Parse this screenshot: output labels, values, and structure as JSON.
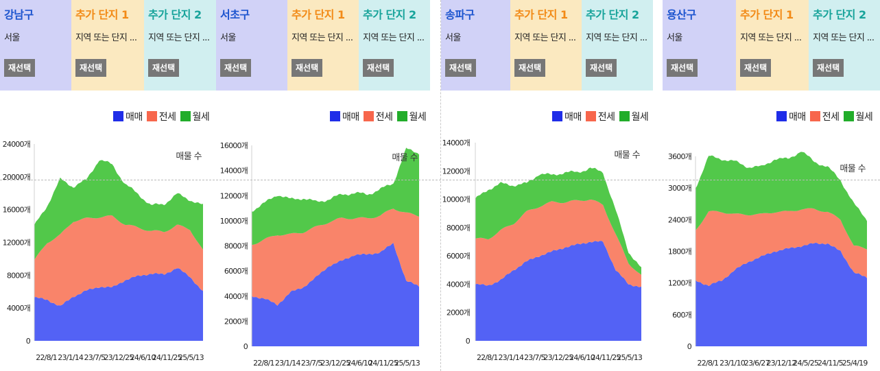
{
  "colors": {
    "sale": "#5362f5",
    "jeonse": "#f9846a",
    "monthly": "#52c84a",
    "sale_legend": "#1f2de8",
    "jeonse_legend": "#f7664c",
    "monthly_legend": "#22ad2a"
  },
  "legend": {
    "sale": "매매",
    "jeonse": "전세",
    "monthly": "월세"
  },
  "reselect_label": "재선택",
  "panels": [
    {
      "region": "강남구",
      "city": "서울",
      "extra1": {
        "title": "추가 단지 1",
        "placeholder": "지역 또는 단지 ..."
      },
      "extra2": {
        "title": "추가 단지 2",
        "placeholder": "지역 또는 단지 ..."
      }
    },
    {
      "region": "서초구",
      "city": "서울",
      "extra1": {
        "title": "추가 단지 1",
        "placeholder": "지역 또는 단지 ..."
      },
      "extra2": {
        "title": "추가 단지 2",
        "placeholder": "지역 또는 단지 ..."
      }
    },
    {
      "region": "송파구",
      "city": "서울",
      "extra1": {
        "title": "추가 단지 1",
        "placeholder": "지역 또는 단지 ..."
      },
      "extra2": {
        "title": "추가 단지 2",
        "placeholder": "지역 또는 단지 ..."
      }
    },
    {
      "region": "용산구",
      "city": "서울",
      "extra1": {
        "title": "추가 단지 1",
        "placeholder": "지역 또는 단지 ..."
      },
      "extra2": {
        "title": "추가 단지 2",
        "placeholder": "지역 또는 단지 ..."
      }
    }
  ],
  "chart_data": [
    {
      "type": "area",
      "stacked": true,
      "annotation": "매물 수",
      "ylim": [
        0,
        24000
      ],
      "yticks": [
        0,
        4000,
        8000,
        12000,
        16000,
        20000,
        24000
      ],
      "ytick_labels": [
        "0",
        "4000개",
        "8000개",
        "12000개",
        "16000개",
        "20000개",
        "24000개"
      ],
      "xticks": [
        "22/8/1",
        "23/1/14",
        "23/7/5",
        "23/12/25",
        "24/6/10",
        "24/11/25",
        "25/5/13"
      ],
      "legend": "top-right",
      "series": [
        {
          "name": "매매",
          "values": [
            5300,
            5000,
            4200,
            5400,
            6100,
            6600,
            6500,
            7400,
            7900,
            8200,
            8100,
            8900,
            7800,
            6000
          ]
        },
        {
          "name": "전세",
          "values": [
            4500,
            7000,
            8700,
            9200,
            8800,
            8500,
            8700,
            6800,
            5900,
            5200,
            5200,
            5200,
            5800,
            5000
          ]
        },
        {
          "name": "월세",
          "values": [
            4200,
            4500,
            6800,
            4200,
            4700,
            7000,
            6300,
            4900,
            4100,
            3100,
            3400,
            3800,
            3600,
            5500
          ]
        }
      ]
    },
    {
      "type": "area",
      "stacked": true,
      "annotation": "매물 수",
      "ylim": [
        0,
        16000
      ],
      "yticks": [
        0,
        2000,
        4000,
        6000,
        8000,
        10000,
        12000,
        14000,
        16000
      ],
      "ytick_labels": [
        "0",
        "2000개",
        "4000개",
        "6000개",
        "8000개",
        "10000개",
        "12000개",
        "14000개",
        "16000개"
      ],
      "xticks": [
        "22/8/1",
        "23/1/14",
        "23/7/5",
        "23/12/25",
        "24/6/10",
        "24/11/25",
        "25/5/13"
      ],
      "legend": "top-right",
      "series": [
        {
          "name": "매매",
          "values": [
            4000,
            3800,
            3300,
            4300,
            4700,
            5500,
            6400,
            6800,
            7300,
            7300,
            7500,
            8200,
            5200,
            4800
          ]
        },
        {
          "name": "전세",
          "values": [
            4100,
            4700,
            5600,
            4600,
            4400,
            4000,
            3500,
            3400,
            2900,
            2900,
            2900,
            2800,
            5400,
            5600
          ]
        },
        {
          "name": "월세",
          "values": [
            2700,
            2900,
            3200,
            2800,
            2700,
            2000,
            1800,
            1900,
            2000,
            1900,
            2100,
            2000,
            5100,
            5000
          ]
        }
      ]
    },
    {
      "type": "area",
      "stacked": true,
      "annotation": "매물 수",
      "ylim": [
        0,
        14000
      ],
      "yticks": [
        0,
        2000,
        4000,
        6000,
        8000,
        10000,
        12000,
        14000
      ],
      "ytick_labels": [
        "0",
        "2000개",
        "4000개",
        "6000개",
        "8000개",
        "10000개",
        "12000개",
        "14000개"
      ],
      "xticks": [
        "22/8/1",
        "23/1/14",
        "23/7/5",
        "23/12/25",
        "24/6/10",
        "24/11/25",
        "25/5/13"
      ],
      "legend": "top-right",
      "series": [
        {
          "name": "매매",
          "values": [
            4000,
            3900,
            4300,
            5000,
            5600,
            6000,
            6300,
            6600,
            6800,
            7000,
            7000,
            5000,
            4000,
            3800
          ]
        },
        {
          "name": "전세",
          "values": [
            3200,
            3300,
            3500,
            3300,
            3500,
            3500,
            3500,
            3200,
            3100,
            3000,
            2600,
            2500,
            1500,
            800
          ]
        },
        {
          "name": "월세",
          "values": [
            2800,
            3500,
            3300,
            2700,
            2000,
            2300,
            1900,
            2100,
            2000,
            2200,
            2300,
            1700,
            800,
            500
          ]
        }
      ]
    },
    {
      "type": "area",
      "stacked": true,
      "annotation": "매물 수",
      "ylim": [
        0,
        3600
      ],
      "yticks": [
        0,
        600,
        1200,
        1800,
        2400,
        3000,
        3600
      ],
      "ytick_labels": [
        "0",
        "600개",
        "1200개",
        "1800개",
        "2400개",
        "3000개",
        "3600개"
      ],
      "xticks": [
        "22/8/1",
        "23/1/10",
        "23/6/27",
        "23/12/12",
        "24/5/25",
        "24/11/5",
        "25/4/19"
      ],
      "legend": "top-right",
      "series": [
        {
          "name": "매매",
          "values": [
            1250,
            1150,
            1250,
            1450,
            1600,
            1700,
            1800,
            1850,
            1900,
            1950,
            1950,
            1800,
            1400,
            1300
          ]
        },
        {
          "name": "전세",
          "values": [
            950,
            1400,
            1300,
            1050,
            900,
            800,
            750,
            700,
            700,
            650,
            600,
            600,
            500,
            550
          ]
        },
        {
          "name": "월세",
          "values": [
            800,
            1050,
            1000,
            1000,
            900,
            900,
            1000,
            1000,
            1100,
            900,
            850,
            750,
            800,
            550
          ]
        }
      ]
    }
  ]
}
